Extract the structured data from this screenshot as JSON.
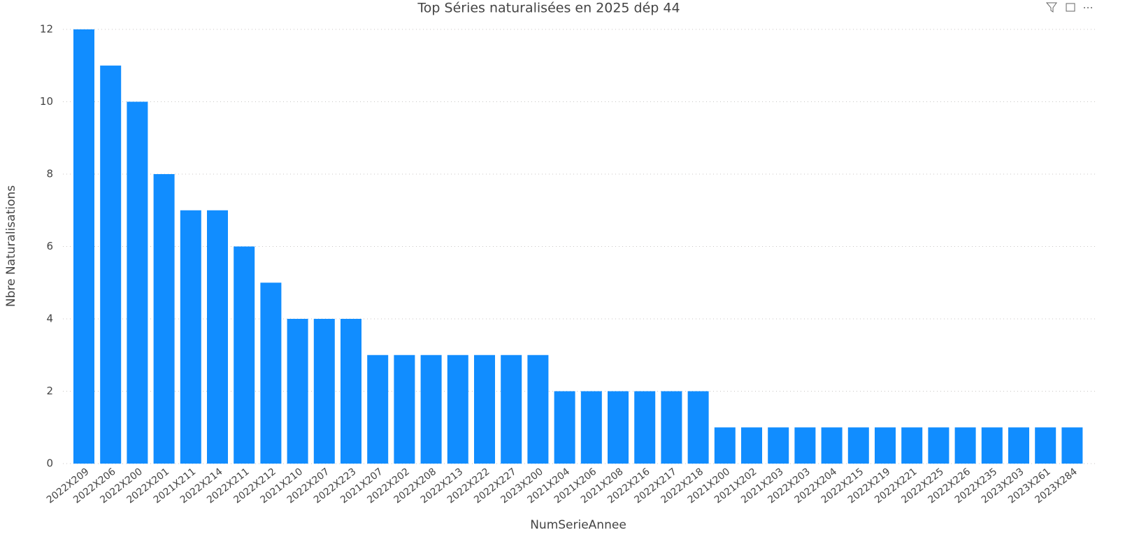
{
  "chart_data": {
    "type": "bar",
    "title": "Top Séries naturalisées en 2025 dép 44",
    "x_label": "NumSerieAnnee",
    "y_label": "Nbre Naturalisations",
    "categories": [
      "2022X209",
      "2022X206",
      "2022X200",
      "2022X201",
      "2021X211",
      "2022X214",
      "2022X211",
      "2022X212",
      "2021X210",
      "2022X207",
      "2022X223",
      "2021X207",
      "2022X202",
      "2022X208",
      "2022X213",
      "2022X222",
      "2022X227",
      "2023X200",
      "2021X204",
      "2021X206",
      "2021X208",
      "2022X216",
      "2022X217",
      "2022X218",
      "2021X200",
      "2021X202",
      "2021X203",
      "2022X203",
      "2022X204",
      "2022X215",
      "2022X219",
      "2022X221",
      "2022X225",
      "2022X226",
      "2022X235",
      "2023X203",
      "2023X261",
      "2023X284"
    ],
    "values": [
      12,
      11,
      10,
      8,
      7,
      7,
      6,
      5,
      4,
      4,
      4,
      3,
      3,
      3,
      3,
      3,
      3,
      3,
      2,
      2,
      2,
      2,
      2,
      2,
      1,
      1,
      1,
      1,
      1,
      1,
      1,
      1,
      1,
      1,
      1,
      1,
      1,
      1
    ],
    "color": "#118dff",
    "ylim": [
      0,
      12
    ],
    "yticks": [
      0,
      2,
      4,
      6,
      8,
      10,
      12
    ],
    "grid": true
  }
}
